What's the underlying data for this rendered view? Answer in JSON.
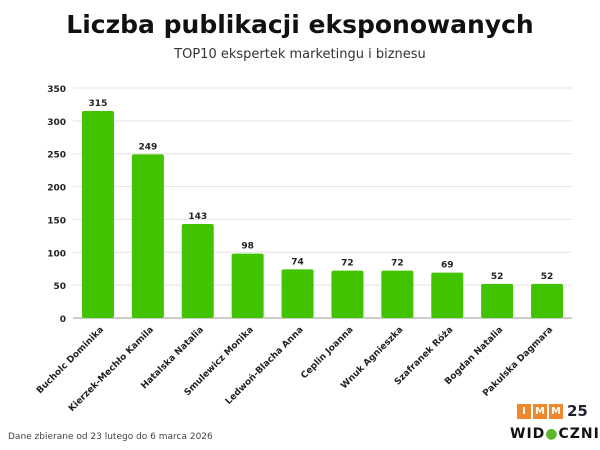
{
  "chart_data": {
    "type": "bar",
    "title": "Liczba publikacji eksponowanych",
    "subtitle": "TOP10 ekspertek marketingu i biznesu",
    "categories": [
      "Bucholc Dominika",
      "Kierzek-Mechło Kamila",
      "Hatalska Natalia",
      "Smulewicz Monika",
      "Ledwoń-Blacha Anna",
      "Ceplin Joanna",
      "Wnuk Agnieszka",
      "Szafranek Róża",
      "Bogdan Natalia",
      "Pakulska Dagmara"
    ],
    "values": [
      315,
      249,
      143,
      98,
      74,
      72,
      72,
      69,
      52,
      52
    ],
    "ylim": [
      0,
      350
    ],
    "yticks": [
      0,
      50,
      100,
      150,
      200,
      250,
      300,
      350
    ],
    "grid": true,
    "bar_color": "#41c300"
  },
  "footer": "Dane zbierane od 23 lutego do 6 marca 2026",
  "logos": {
    "imm": [
      "I",
      "M",
      "M"
    ],
    "imm_years": "25",
    "widoczni": "WIDOCZNI"
  }
}
